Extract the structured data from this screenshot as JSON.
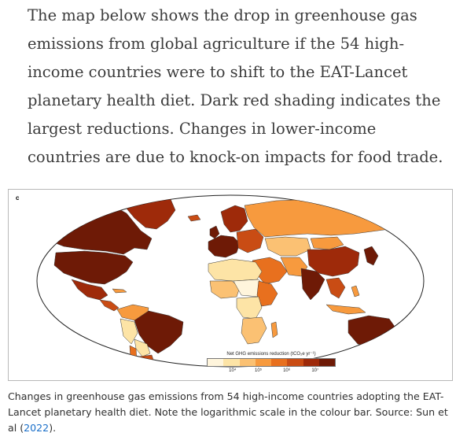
{
  "intro": {
    "text": "The map below shows the drop in greenhouse gas emissions from global agriculture if the 54 high-income countries were to shift to the EAT-Lancet planetary health diet. Dark red shading indicates the largest reductions. Changes in lower-income countries are due to knock-on impacts for food trade."
  },
  "figure": {
    "panel_letter": "c",
    "legend": {
      "title": "Net GHG emissions reduction (tCO₂e yr⁻¹)",
      "ticks": [
        "10⁴",
        "10⁵",
        "10⁶",
        "10⁷"
      ],
      "colors": [
        "#fff5dc",
        "#fde4a6",
        "#fbc173",
        "#f79a3e",
        "#e8701e",
        "#c94c14",
        "#9e2a0a",
        "#6e1a06"
      ]
    },
    "colors": {
      "ocean": "#ffffff",
      "border": "#3a3a3a",
      "darkest": "#6e1a06",
      "dark": "#9e2a0a",
      "medium_dark": "#c94c14",
      "medium": "#e8701e",
      "light_orange": "#f79a3e",
      "pale": "#fde4a6",
      "palest": "#fff5dc"
    }
  },
  "caption": {
    "text": "Changes in greenhouse gas emissions from 54 high-income countries adopting the EAT-Lancet planetary health diet. Note the logarithmic scale in the colour bar. Source: Sun et al (",
    "link": "2022",
    "end": ")."
  }
}
